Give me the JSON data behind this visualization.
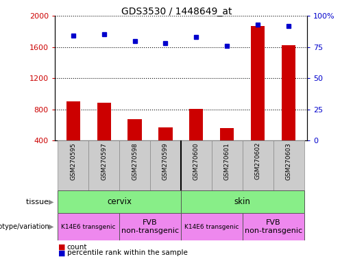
{
  "title": "GDS3530 / 1448649_at",
  "samples": [
    "GSM270595",
    "GSM270597",
    "GSM270598",
    "GSM270599",
    "GSM270600",
    "GSM270601",
    "GSM270602",
    "GSM270603"
  ],
  "counts": [
    900,
    890,
    680,
    570,
    810,
    560,
    1870,
    1620
  ],
  "percentile_ranks": [
    84,
    85,
    80,
    78,
    83,
    76,
    93,
    92
  ],
  "ylim_left": [
    400,
    2000
  ],
  "ylim_right": [
    0,
    100
  ],
  "yticks_left": [
    400,
    800,
    1200,
    1600,
    2000
  ],
  "yticks_right": [
    0,
    25,
    50,
    75,
    100
  ],
  "bar_color": "#cc0000",
  "dot_color": "#0000cc",
  "tissue_green": "#88ee88",
  "genotype_purple": "#ee88ee",
  "sample_box_gray": "#cccccc",
  "legend_count_label": "count",
  "legend_pct_label": "percentile rank within the sample",
  "tissue_row_label": "tissue",
  "genotype_row_label": "genotype/variation",
  "left_axis_color": "#cc0000",
  "right_axis_color": "#0000cc"
}
